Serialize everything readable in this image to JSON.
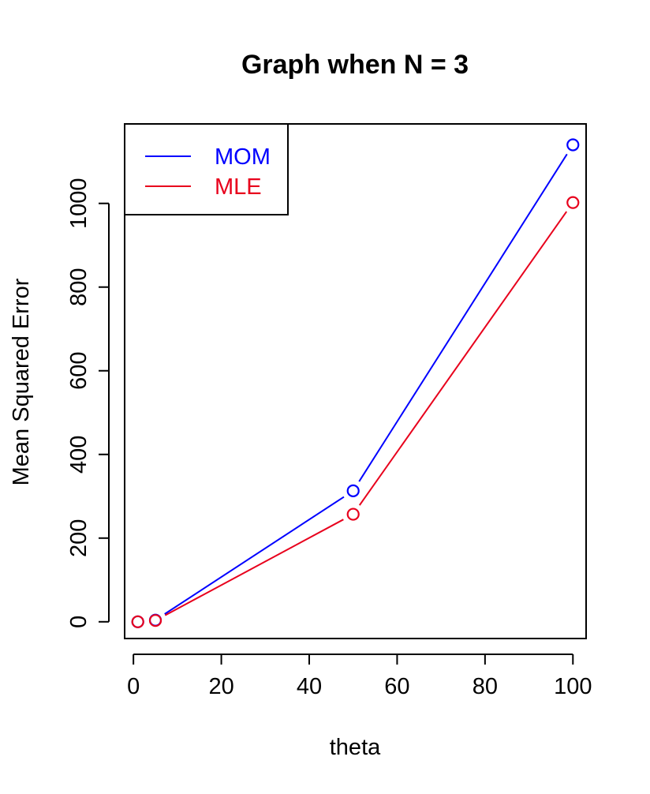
{
  "chart_data": {
    "type": "line",
    "title": "Graph when N = 3",
    "xlabel": "theta",
    "ylabel": "Mean Squared Error",
    "x": [
      1,
      5,
      50,
      100
    ],
    "xlim": [
      -2,
      103
    ],
    "ylim": [
      -40,
      1190
    ],
    "x_ticks": [
      0,
      20,
      40,
      60,
      80,
      100
    ],
    "y_ticks": [
      0,
      200,
      400,
      600,
      800,
      1000
    ],
    "series": [
      {
        "name": "MOM",
        "color": "#0000ff",
        "values": [
          0,
          4,
          313,
          1140
        ]
      },
      {
        "name": "MLE",
        "color": "#e8001c",
        "values": [
          0,
          3,
          257,
          1002
        ]
      }
    ],
    "legend_position": "top-left",
    "grid": false,
    "markers": "open-circle"
  }
}
